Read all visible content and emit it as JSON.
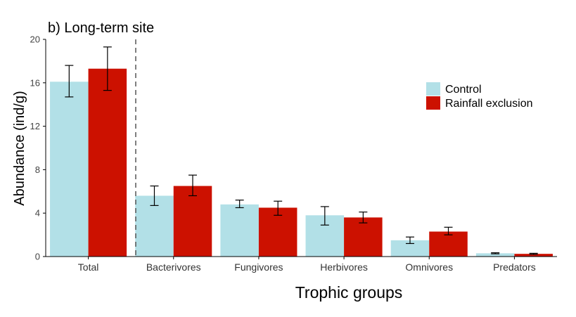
{
  "chart_data": {
    "type": "bar",
    "title": "b) Long-term site",
    "xlabel": "Trophic groups",
    "ylabel": "Abundance (ind/g)",
    "ylim": [
      0,
      20
    ],
    "yticks": [
      0,
      4,
      8,
      12,
      16,
      20
    ],
    "categories": [
      "Total",
      "Bacterivores",
      "Fungivores",
      "Herbivores",
      "Omnivores",
      "Predators"
    ],
    "series": [
      {
        "name": "Control",
        "color": "#b2e0e7",
        "values": [
          16.1,
          5.6,
          4.8,
          3.8,
          1.5,
          0.3
        ],
        "error_low": [
          14.7,
          4.7,
          4.5,
          2.9,
          1.2,
          0.25
        ],
        "error_high": [
          17.6,
          6.5,
          5.2,
          4.6,
          1.8,
          0.35
        ]
      },
      {
        "name": "Rainfall exclusion",
        "color": "#cc1100",
        "values": [
          17.3,
          6.5,
          4.5,
          3.6,
          2.3,
          0.25
        ],
        "error_low": [
          15.3,
          5.6,
          3.8,
          3.1,
          2.0,
          0.2
        ],
        "error_high": [
          19.3,
          7.5,
          5.1,
          4.1,
          2.7,
          0.3
        ]
      }
    ],
    "grid": false,
    "legend_position": "right",
    "dashed_separator_after": "Total"
  }
}
